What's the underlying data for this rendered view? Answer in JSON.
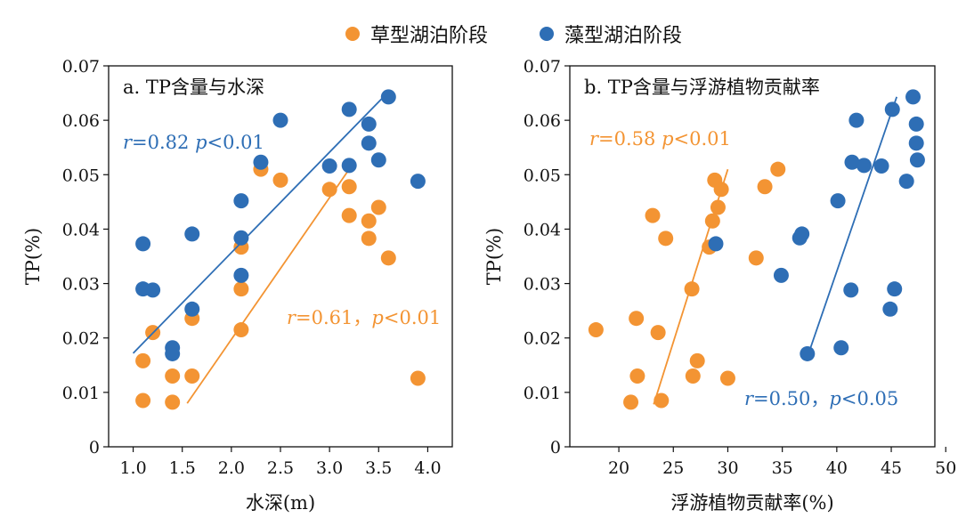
{
  "legend": {
    "items": [
      {
        "label": "草型湖泊阶段",
        "color": "#F39433"
      },
      {
        "label": "藻型湖泊阶段",
        "color": "#2E6EB5"
      }
    ]
  },
  "chart_data": [
    {
      "type": "scatter",
      "title": "a. TP含量与水深",
      "xlabel": "水深(m)",
      "ylabel": "TP(%)",
      "xlim": [
        0.75,
        4.25
      ],
      "ylim": [
        0,
        0.07
      ],
      "xticks": [
        "1.0",
        "1.5",
        "2.0",
        "2.5",
        "3.0",
        "3.5",
        "4.0"
      ],
      "xtick_values": [
        1.0,
        1.5,
        2.0,
        2.5,
        3.0,
        3.5,
        4.0
      ],
      "yticks": [
        "0",
        "0.01",
        "0.02",
        "0.03",
        "0.04",
        "0.05",
        "0.06",
        "0.07"
      ],
      "ytick_values": [
        0,
        0.01,
        0.02,
        0.03,
        0.04,
        0.05,
        0.06,
        0.07
      ],
      "series": [
        {
          "name": "草型湖泊阶段",
          "color": "#F39433",
          "points": [
            [
              1.1,
              0.0085
            ],
            [
              1.1,
              0.0158
            ],
            [
              1.2,
              0.021
            ],
            [
              1.4,
              0.0082
            ],
            [
              1.4,
              0.013
            ],
            [
              1.6,
              0.013
            ],
            [
              1.6,
              0.0236
            ],
            [
              2.1,
              0.0215
            ],
            [
              2.1,
              0.029
            ],
            [
              2.1,
              0.0367
            ],
            [
              2.3,
              0.051
            ],
            [
              2.5,
              0.049
            ],
            [
              3.0,
              0.0473
            ],
            [
              3.2,
              0.0478
            ],
            [
              3.2,
              0.0425
            ],
            [
              3.4,
              0.0415
            ],
            [
              3.4,
              0.0383
            ],
            [
              3.5,
              0.044
            ],
            [
              3.6,
              0.0347
            ],
            [
              3.9,
              0.0126
            ]
          ],
          "fit": [
            [
              1.55,
              0.008
            ],
            [
              3.2,
              0.051
            ]
          ],
          "annotation": {
            "r": "r",
            "text": "=0.61，",
            "p": "p",
            "text2": "<0.01"
          }
        },
        {
          "name": "藻型湖泊阶段",
          "color": "#2E6EB5",
          "points": [
            [
              1.1,
              0.0373
            ],
            [
              1.1,
              0.029
            ],
            [
              1.2,
              0.0288
            ],
            [
              1.4,
              0.0182
            ],
            [
              1.4,
              0.0171
            ],
            [
              1.6,
              0.0391
            ],
            [
              1.6,
              0.0253
            ],
            [
              2.1,
              0.0452
            ],
            [
              2.1,
              0.0384
            ],
            [
              2.1,
              0.0315
            ],
            [
              2.3,
              0.0523
            ],
            [
              2.5,
              0.06
            ],
            [
              3.0,
              0.0516
            ],
            [
              3.2,
              0.062
            ],
            [
              3.2,
              0.0517
            ],
            [
              3.4,
              0.0593
            ],
            [
              3.4,
              0.0558
            ],
            [
              3.5,
              0.0527
            ],
            [
              3.6,
              0.0643
            ],
            [
              3.9,
              0.0488
            ]
          ],
          "fit": [
            [
              1.0,
              0.0172
            ],
            [
              3.55,
              0.0643
            ]
          ],
          "annotation": {
            "r": "r",
            "text": "=0.82 ",
            "p": "p",
            "text2": "<0.01"
          }
        }
      ]
    },
    {
      "type": "scatter",
      "title": "b. TP含量与浮游植物贡献率",
      "xlabel": "浮游植物贡献率(%)",
      "ylabel": "TP(%)",
      "xlim": [
        15.5,
        49
      ],
      "ylim": [
        0,
        0.07
      ],
      "xticks": [
        "20",
        "25",
        "30",
        "35",
        "40",
        "45",
        "50"
      ],
      "xtick_values": [
        20,
        25,
        30,
        35,
        40,
        45,
        50
      ],
      "yticks": [
        "0",
        "0.01",
        "0.02",
        "0.03",
        "0.04",
        "0.05",
        "0.06",
        "0.07"
      ],
      "ytick_values": [
        0,
        0.01,
        0.02,
        0.03,
        0.04,
        0.05,
        0.06,
        0.07
      ],
      "series": [
        {
          "name": "草型湖泊阶段",
          "color": "#F39433",
          "points": [
            [
              17.9,
              0.0215
            ],
            [
              21.1,
              0.0082
            ],
            [
              21.6,
              0.0236
            ],
            [
              21.7,
              0.013
            ],
            [
              23.1,
              0.0425
            ],
            [
              23.6,
              0.021
            ],
            [
              23.9,
              0.0085
            ],
            [
              24.3,
              0.0383
            ],
            [
              26.7,
              0.029
            ],
            [
              26.8,
              0.013
            ],
            [
              27.2,
              0.0158
            ],
            [
              28.3,
              0.0367
            ],
            [
              28.6,
              0.0415
            ],
            [
              28.8,
              0.049
            ],
            [
              29.1,
              0.044
            ],
            [
              29.4,
              0.0473
            ],
            [
              30.0,
              0.0126
            ],
            [
              32.6,
              0.0347
            ],
            [
              33.4,
              0.0478
            ],
            [
              34.6,
              0.051
            ]
          ],
          "fit": [
            [
              23.2,
              0.0078
            ],
            [
              30.0,
              0.051
            ]
          ],
          "annotation": {
            "r": "r",
            "text": "=0.58 ",
            "p": "p",
            "text2": "<0.01"
          }
        },
        {
          "name": "藻型湖泊阶段",
          "color": "#2E6EB5",
          "points": [
            [
              28.9,
              0.0373
            ],
            [
              34.9,
              0.0315
            ],
            [
              36.6,
              0.0384
            ],
            [
              36.8,
              0.0391
            ],
            [
              37.3,
              0.0171
            ],
            [
              40.1,
              0.0452
            ],
            [
              40.4,
              0.0182
            ],
            [
              41.3,
              0.0288
            ],
            [
              41.4,
              0.0523
            ],
            [
              41.8,
              0.06
            ],
            [
              42.5,
              0.0517
            ],
            [
              44.1,
              0.0516
            ],
            [
              44.9,
              0.0253
            ],
            [
              45.1,
              0.062
            ],
            [
              45.3,
              0.029
            ],
            [
              46.4,
              0.0488
            ],
            [
              47.0,
              0.0643
            ],
            [
              47.3,
              0.0593
            ],
            [
              47.3,
              0.0558
            ],
            [
              47.4,
              0.0527
            ]
          ],
          "fit": [
            [
              37.3,
              0.0165
            ],
            [
              45.5,
              0.0643
            ]
          ],
          "annotation": {
            "r": "r",
            "text": "=0.50，",
            "p": "p",
            "text2": "<0.05"
          }
        }
      ]
    }
  ]
}
